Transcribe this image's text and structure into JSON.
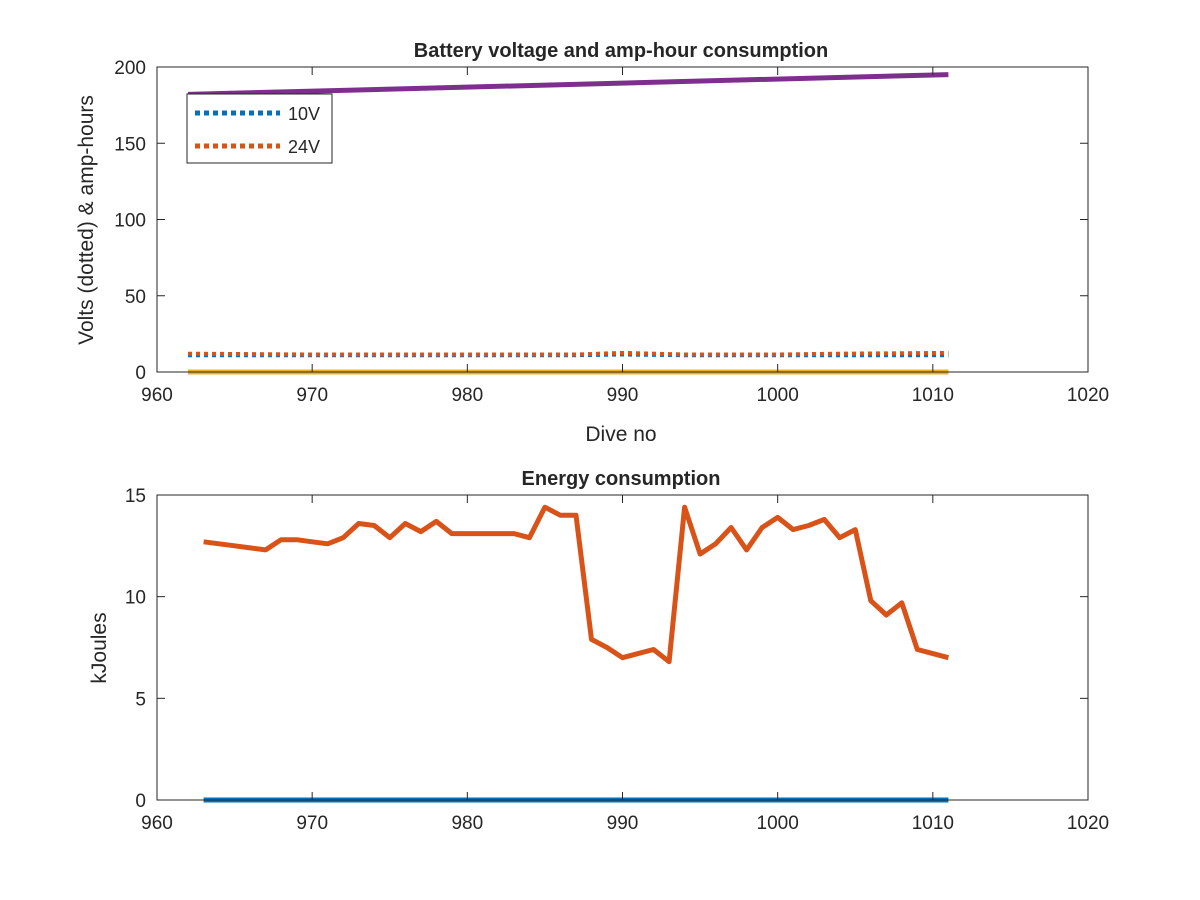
{
  "chart_data": [
    {
      "type": "line",
      "title": "Battery voltage and amp-hour consumption",
      "xlabel": "Dive no",
      "ylabel": "Volts (dotted) & amp-hours",
      "xlim": [
        960,
        1020
      ],
      "ylim": [
        0,
        200
      ],
      "xticks": [
        960,
        970,
        980,
        990,
        1000,
        1010,
        1020
      ],
      "yticks": [
        0,
        50,
        100,
        150,
        200
      ],
      "grid": false,
      "legend": "top-left",
      "series": [
        {
          "name": "10V",
          "style": "dotted",
          "color": "#0072BD",
          "legend_color": "#0072BD",
          "x": [
            962,
            970,
            980,
            987,
            990,
            994,
            1000,
            1004,
            1011
          ],
          "y": [
            11,
            11,
            11,
            11,
            11.5,
            11,
            11,
            11,
            11
          ]
        },
        {
          "name": "24V",
          "style": "dotted",
          "color": "#D95319",
          "legend_color": "#D95319",
          "x": [
            962,
            970,
            980,
            987,
            990,
            994,
            1000,
            1004,
            1011
          ],
          "y": [
            12,
            11.5,
            11.5,
            11.5,
            12.5,
            11.5,
            11.5,
            12,
            12.5
          ]
        },
        {
          "style": "solid",
          "color": "#EDB120",
          "x": [
            962,
            1011
          ],
          "y": [
            0,
            0
          ]
        },
        {
          "style": "solid",
          "color": "#7E2F8E",
          "x": [
            962,
            1011
          ],
          "y": [
            182,
            195
          ]
        }
      ]
    },
    {
      "type": "line",
      "title": "Energy consumption",
      "xlabel": "",
      "ylabel": "kJoules",
      "xlim": [
        960,
        1020
      ],
      "ylim": [
        0,
        15
      ],
      "xticks": [
        960,
        970,
        980,
        990,
        1000,
        1010,
        1020
      ],
      "yticks": [
        0,
        5,
        10,
        15
      ],
      "grid": false,
      "series": [
        {
          "style": "solid",
          "color": "#D95319",
          "x": [
            963,
            964,
            965,
            966,
            967,
            968,
            969,
            970,
            971,
            972,
            973,
            974,
            975,
            976,
            977,
            978,
            979,
            980,
            981,
            982,
            983,
            984,
            985,
            986,
            987,
            988,
            989,
            990,
            991,
            992,
            993,
            994,
            995,
            996,
            997,
            998,
            999,
            1000,
            1001,
            1002,
            1003,
            1004,
            1005,
            1006,
            1007,
            1008,
            1009,
            1010,
            1011
          ],
          "y": [
            12.7,
            12.6,
            12.5,
            12.4,
            12.3,
            12.8,
            12.8,
            12.7,
            12.6,
            12.9,
            13.6,
            13.5,
            12.9,
            13.6,
            13.2,
            13.7,
            13.1,
            13.1,
            13.1,
            13.1,
            13.1,
            12.9,
            14.4,
            14,
            14,
            7.9,
            7.5,
            7,
            7.2,
            7.4,
            6.8,
            14.4,
            12.1,
            12.6,
            13.4,
            12.3,
            13.4,
            13.9,
            13.3,
            13.5,
            13.8,
            12.9,
            13.3,
            9.8,
            9.1,
            9.7,
            7.4,
            7.2,
            7
          ]
        },
        {
          "style": "solid",
          "color": "#0072BD",
          "x": [
            963,
            1011
          ],
          "y": [
            0,
            0
          ]
        }
      ]
    }
  ]
}
